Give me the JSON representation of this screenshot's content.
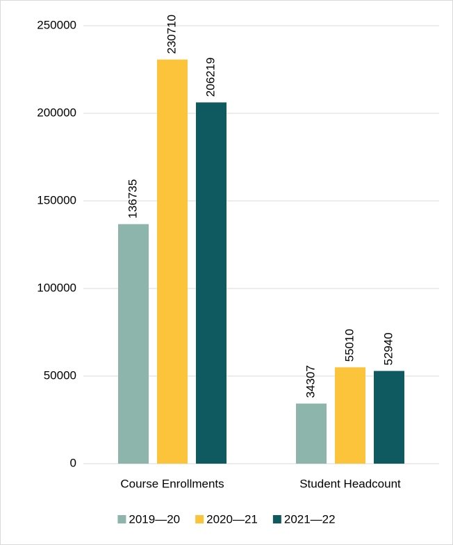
{
  "chart_data": {
    "type": "bar",
    "categories": [
      "Course Enrollments",
      "Student Headcount"
    ],
    "series": [
      {
        "name": "2019—20",
        "color": "#8db5ab",
        "values": [
          136735,
          34307
        ]
      },
      {
        "name": "2020—21",
        "color": "#fbc43b",
        "values": [
          230710,
          55010
        ]
      },
      {
        "name": "2021—22",
        "color": "#0f5a60",
        "values": [
          206219,
          52940
        ]
      }
    ],
    "ylim": [
      0,
      250000
    ],
    "yticks": [
      0,
      50000,
      100000,
      150000,
      200000,
      250000
    ],
    "grid": true,
    "legend": "bottom",
    "data_labels": true
  }
}
